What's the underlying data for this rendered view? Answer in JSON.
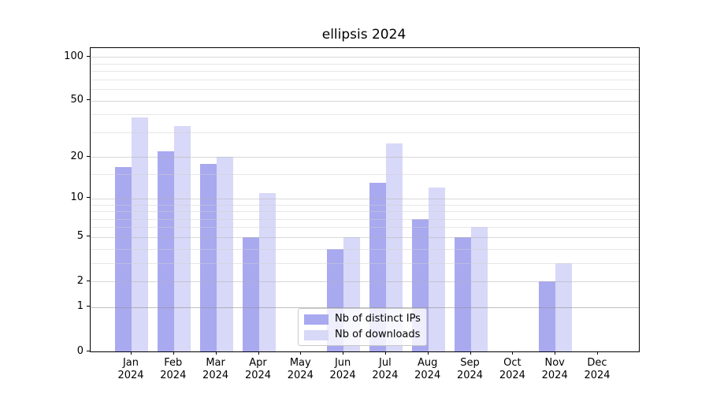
{
  "chart_data": {
    "type": "bar",
    "title": "ellipsis 2024",
    "categories": [
      "Jan",
      "Feb",
      "Mar",
      "Apr",
      "May",
      "Jun",
      "Jul",
      "Aug",
      "Sep",
      "Oct",
      "Nov",
      "Dec"
    ],
    "category_year": "2024",
    "series": [
      {
        "name": "Nb of distinct IPs",
        "color": "#a9a9f0",
        "values": [
          17,
          22,
          18,
          5,
          0,
          4,
          13,
          7,
          5,
          0,
          2,
          0
        ]
      },
      {
        "name": "Nb of downloads",
        "color": "#d8d8f8",
        "values": [
          38,
          33,
          20,
          11,
          0,
          5,
          25,
          12,
          6,
          0,
          3,
          0
        ]
      }
    ],
    "xlabel": "",
    "ylabel": "",
    "yscale": "log1p",
    "ylim": [
      0,
      115
    ],
    "yticks": [
      0,
      1,
      2,
      5,
      10,
      20,
      50,
      100
    ],
    "minor_gridlines": [
      3,
      4,
      6,
      7,
      8,
      9,
      15,
      30,
      40,
      60,
      70,
      80,
      90
    ],
    "grid": true,
    "grid_above_bars": true,
    "legend_position": "lower-center",
    "background_color": "#ffffff",
    "axis_color": "#000000",
    "minor_grid_color": "#ececec",
    "major_grid_color": "#d9d9d9"
  }
}
